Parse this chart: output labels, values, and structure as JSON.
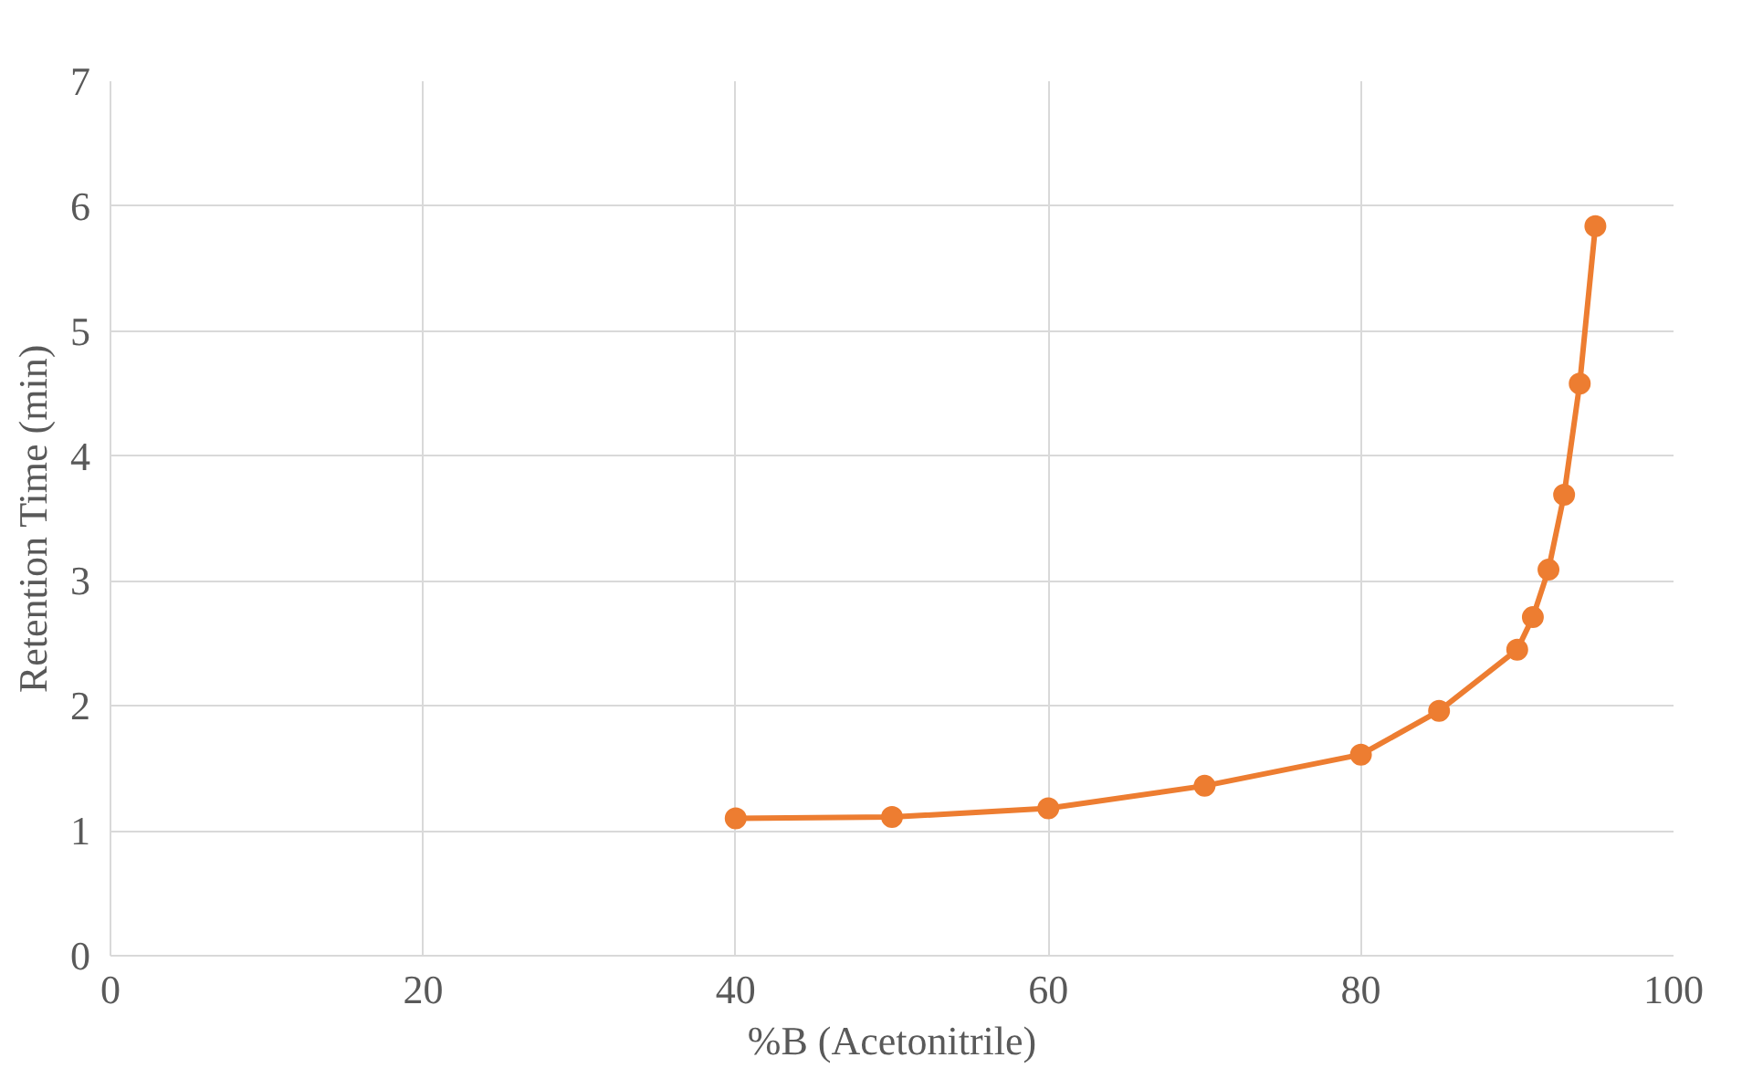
{
  "chart_data": {
    "type": "line",
    "xlabel": "%B (Acetonitrile)",
    "ylabel": "Retention Time (min)",
    "x": [
      40,
      50,
      60,
      70,
      80,
      85,
      90,
      91,
      92,
      93,
      94,
      95
    ],
    "series": [
      {
        "color": "#ed7d31",
        "values": [
          1.1,
          1.11,
          1.18,
          1.36,
          1.61,
          1.96,
          2.45,
          2.71,
          3.09,
          3.69,
          4.58,
          5.84
        ]
      }
    ],
    "xlim": [
      0,
      100
    ],
    "xticks": [
      0,
      20,
      40,
      60,
      80,
      100
    ],
    "ylim": [
      0,
      7
    ],
    "yticks": [
      0,
      1,
      2,
      3,
      4,
      5,
      6,
      7
    ],
    "grid": true,
    "marker": "circle",
    "line_style": "solid"
  }
}
